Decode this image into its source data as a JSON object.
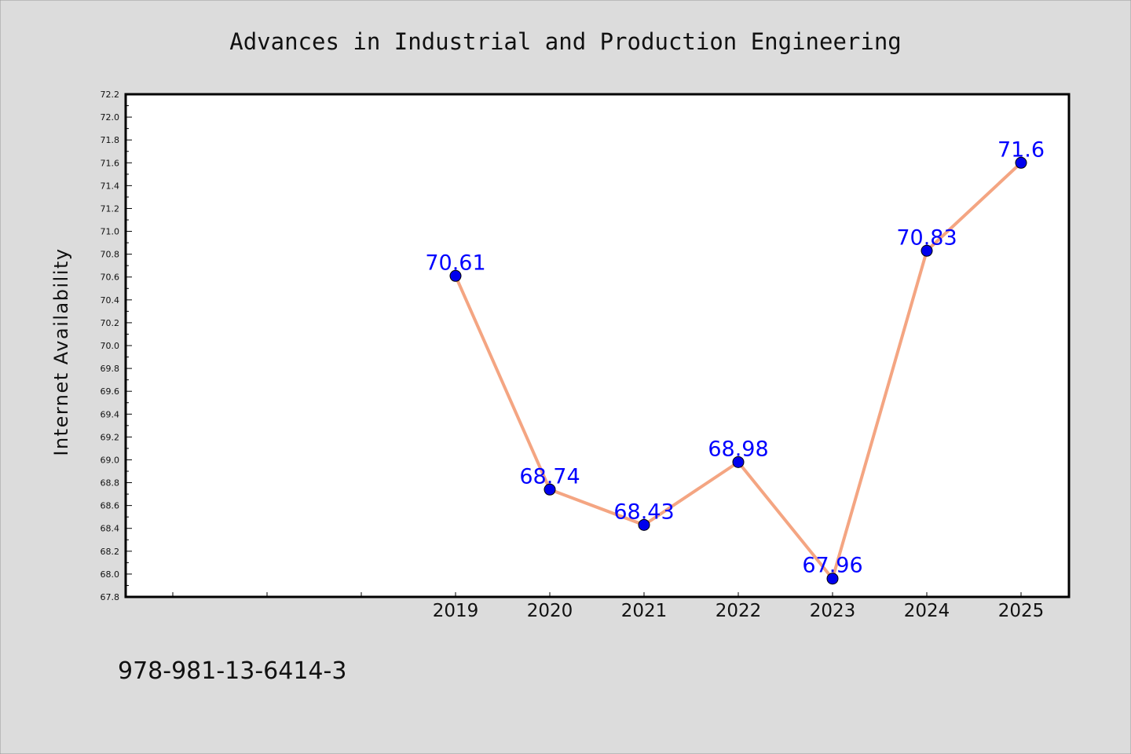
{
  "page": {
    "background_color": "#dcdcdc",
    "footer_text": "978-981-13-6414-3"
  },
  "chart_data": {
    "type": "line",
    "title": "Advances in Industrial and Production Engineering",
    "xlabel": "",
    "ylabel": "Internet Availability",
    "categories": [
      "2019",
      "2020",
      "2021",
      "2022",
      "2023",
      "2024",
      "2025"
    ],
    "series": [
      {
        "values": [
          70.61,
          68.74,
          68.43,
          68.98,
          67.96,
          70.83,
          71.6
        ],
        "labels": [
          "70.61",
          "68.74",
          "68.43",
          "68.98",
          "67.96",
          "70.83",
          "71.6"
        ],
        "line_color": "#f4a582",
        "marker_color": "#0000ee",
        "label_color": "#0000ff"
      }
    ],
    "ylim": [
      67.8,
      72.2
    ],
    "y_ticks": [
      "67.8",
      "68.0",
      "68.2",
      "68.4",
      "68.6",
      "68.8",
      "69.0",
      "69.2",
      "69.4",
      "69.6",
      "69.8",
      "70.0",
      "70.2",
      "70.4",
      "70.6",
      "70.8",
      "71.0",
      "71.2",
      "71.4",
      "71.6",
      "71.8",
      "72.0",
      "72.2"
    ],
    "grid": false,
    "legend": "none",
    "plot_background": "#ffffff"
  }
}
